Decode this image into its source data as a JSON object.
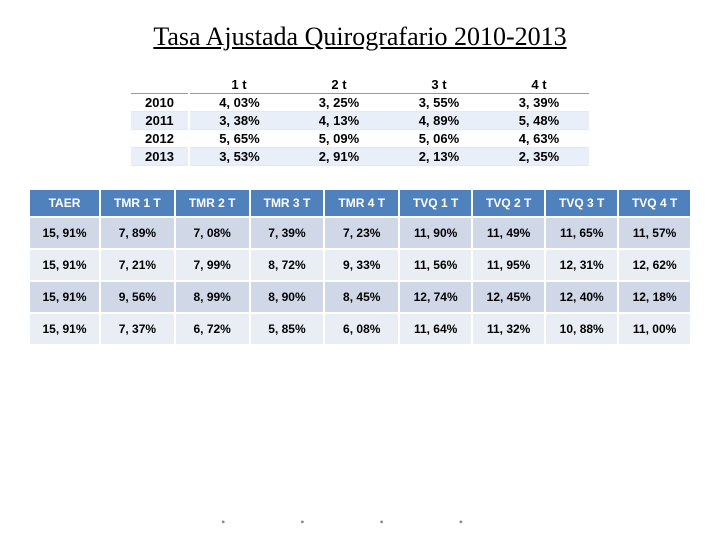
{
  "title": "Tasa Ajustada Quirografario 2010-2013",
  "top": {
    "headers": [
      "",
      "1 t",
      "2 t",
      "3 t",
      "4 t"
    ],
    "rows": [
      {
        "year": "2010",
        "v": [
          "4, 03%",
          "3, 25%",
          "3, 55%",
          "3, 39%"
        ]
      },
      {
        "year": "2011",
        "v": [
          "3, 38%",
          "4, 13%",
          "4, 89%",
          "5, 48%"
        ]
      },
      {
        "year": "2012",
        "v": [
          "5, 65%",
          "5, 09%",
          "5, 06%",
          "4, 63%"
        ]
      },
      {
        "year": "2013",
        "v": [
          "3, 53%",
          "2, 91%",
          "2, 13%",
          "2, 35%"
        ]
      }
    ]
  },
  "bottom": {
    "headers": [
      "TAER",
      "TMR 1 T",
      "TMR 2 T",
      "TMR 3 T",
      "TMR 4 T",
      "TVQ 1 T",
      "TVQ 2 T",
      "TVQ 3 T",
      "TVQ 4 T"
    ],
    "rows": [
      [
        "15, 91%",
        "7, 89%",
        "7, 08%",
        "7, 39%",
        "7, 23%",
        "11, 90%",
        "11, 49%",
        "11, 65%",
        "11, 57%"
      ],
      [
        "15, 91%",
        "7, 21%",
        "7, 99%",
        "8, 72%",
        "9, 33%",
        "11, 56%",
        "11, 95%",
        "12, 31%",
        "12, 62%"
      ],
      [
        "15, 91%",
        "9, 56%",
        "8, 99%",
        "8, 90%",
        "8, 45%",
        "12, 74%",
        "12, 45%",
        "12, 40%",
        "12, 18%"
      ],
      [
        "15, 91%",
        "7, 37%",
        "6, 72%",
        "5, 85%",
        "6, 08%",
        "11, 64%",
        "11, 32%",
        "10, 88%",
        "11, 00%"
      ]
    ]
  },
  "colors": {
    "header_bg": "#4f81bd",
    "row_even": "#d0d8e8",
    "row_odd": "#e9edf4"
  }
}
